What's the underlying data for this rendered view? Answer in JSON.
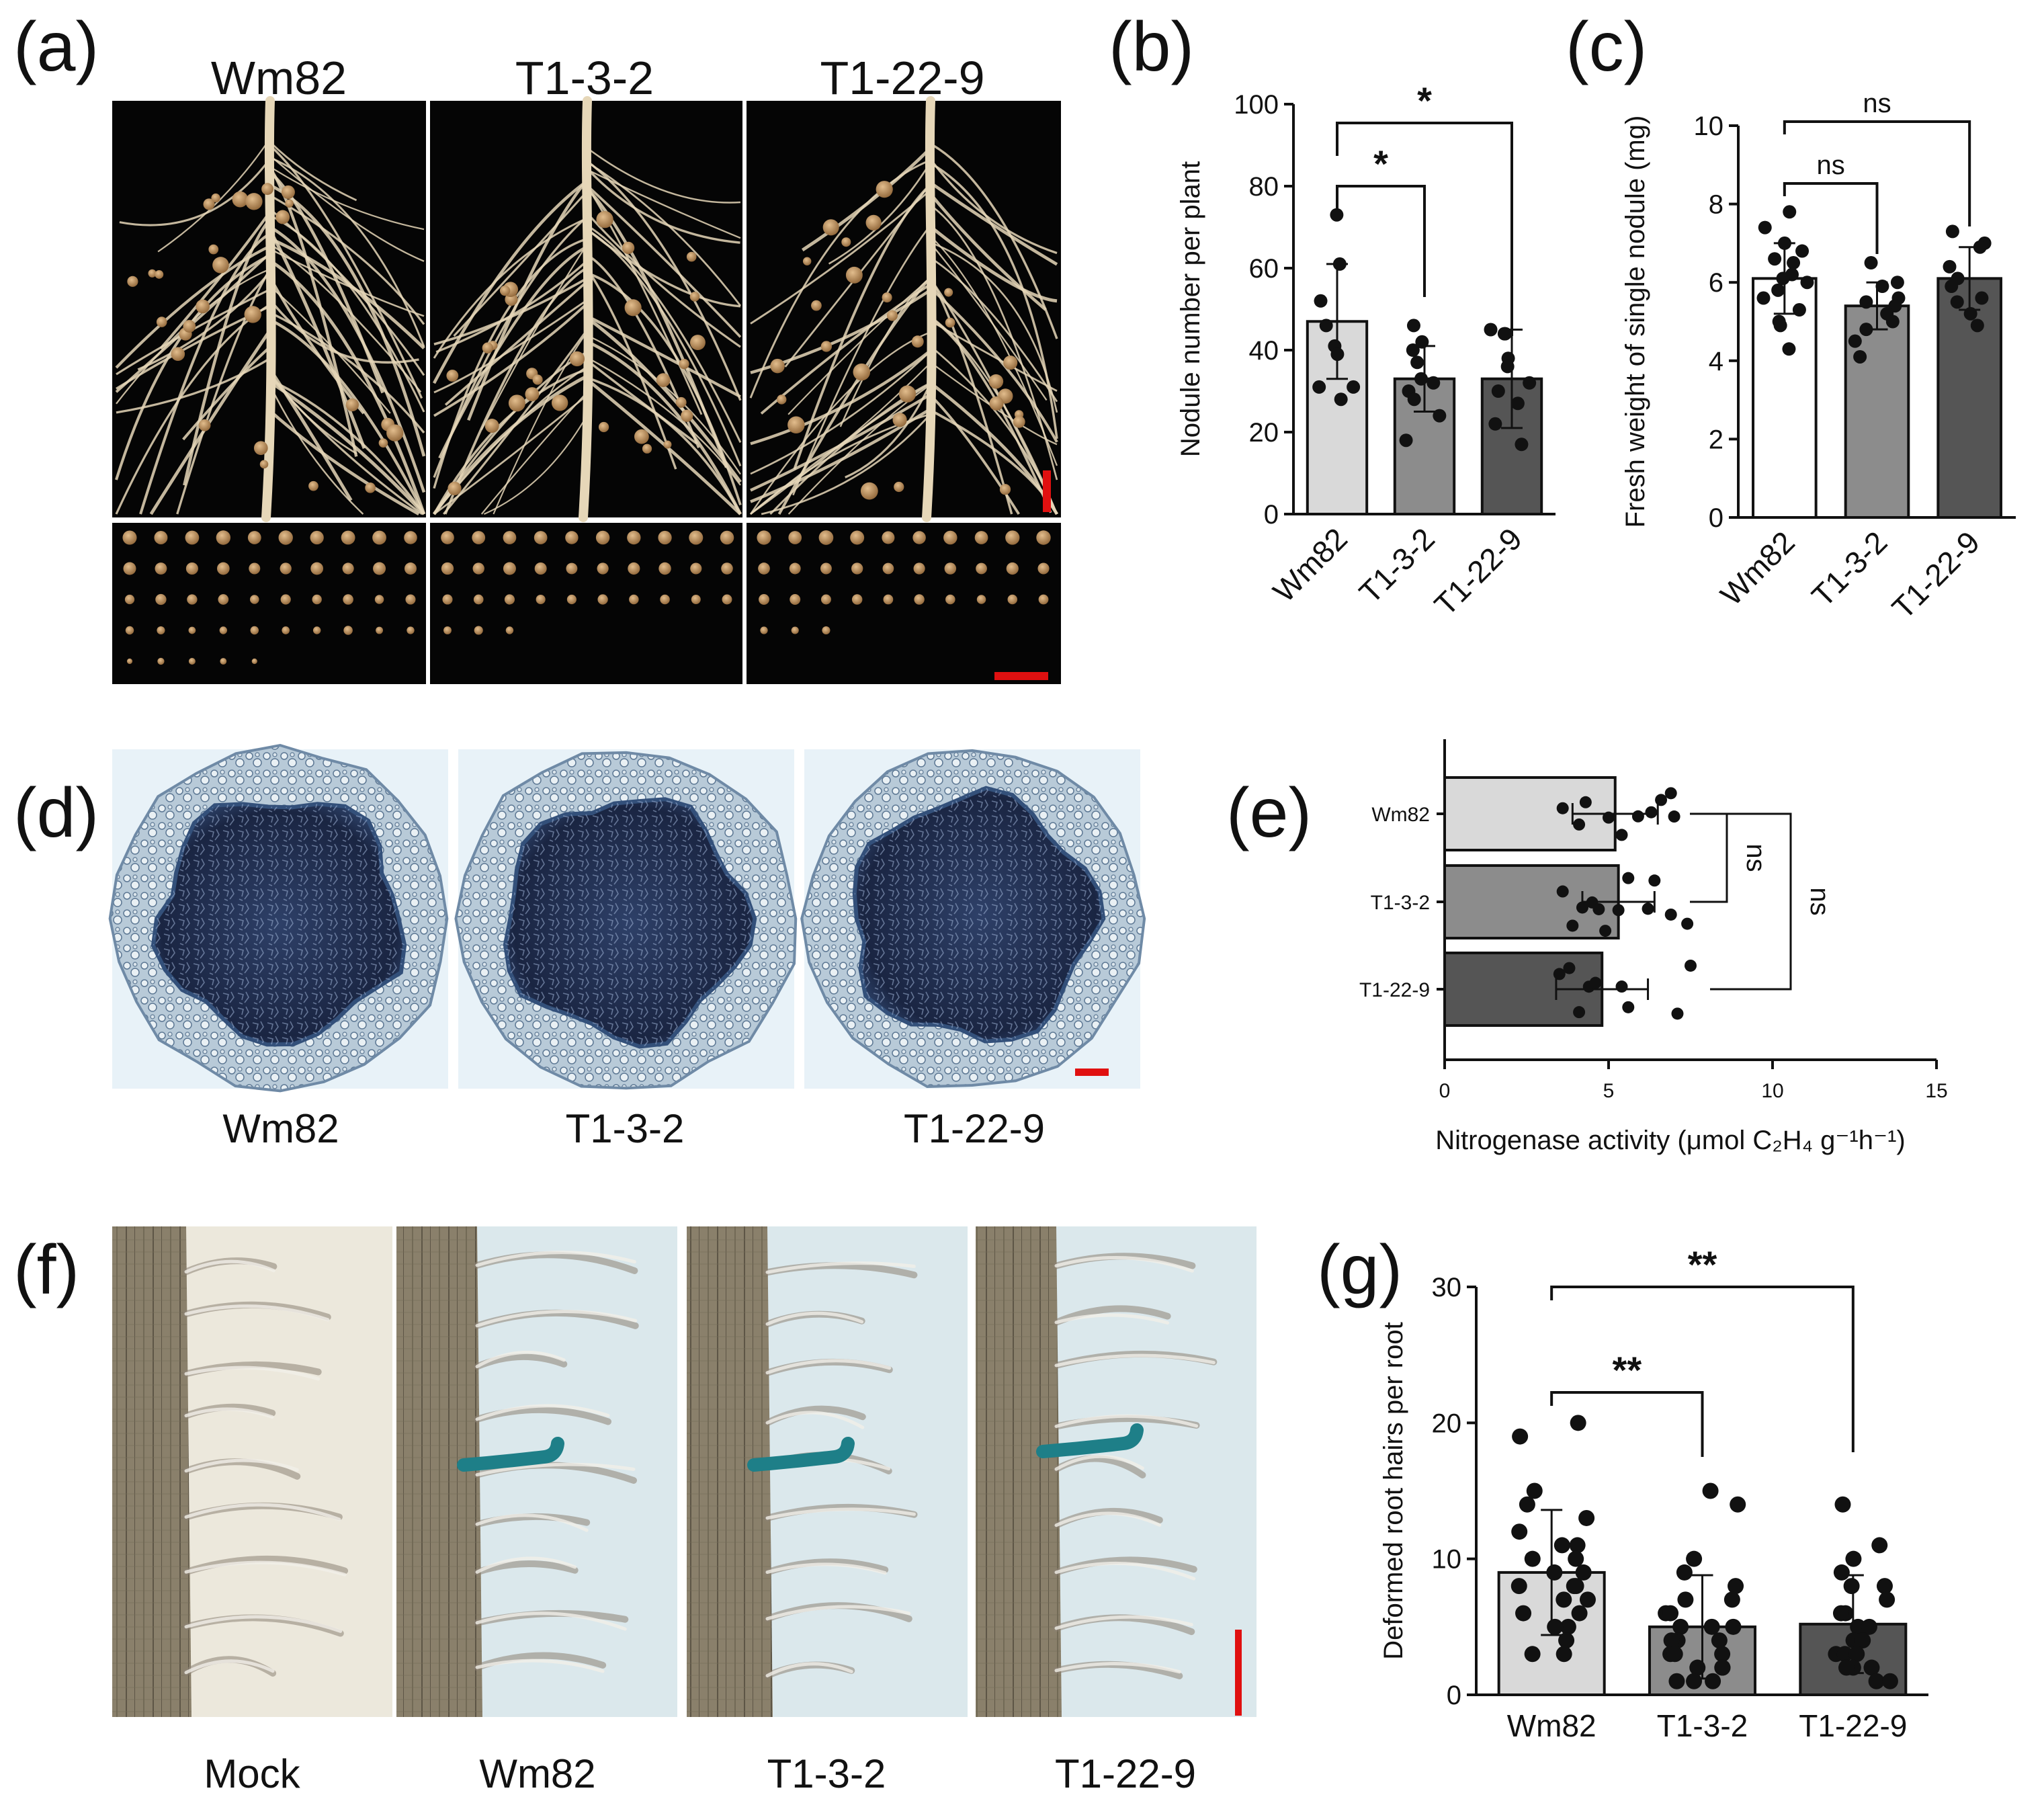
{
  "panels": {
    "a": {
      "letter": "(a)",
      "labels": [
        "Wm82",
        "T1-3-2",
        "T1-22-9"
      ]
    },
    "d": {
      "letter": "(d)",
      "labels": [
        "Wm82",
        "T1-3-2",
        "T1-22-9"
      ]
    },
    "f": {
      "letter": "(f)",
      "labels": [
        "Mock",
        "Wm82",
        "T1-3-2",
        "T1-22-9"
      ]
    }
  },
  "colors": {
    "photo_background": "#050505",
    "root": "#e6d7b8",
    "nodule": "#b98a5a",
    "section_outer": "#9fb5c8",
    "section_inner": "#1d2a48",
    "micro_background": "#dfe7e6",
    "root_tissue": "#867c68",
    "gus_stain": "#1e7f88",
    "scale_bar": "#e01010",
    "bar_light": "#d9d9d9",
    "bar_mid": "#8c8c8c",
    "bar_dark": "#555555",
    "bar_white": "#ffffff"
  },
  "chart_data": [
    {
      "id": "b",
      "letter": "(b)",
      "type": "bar",
      "categories": [
        "Wm82",
        "T1-3-2",
        "T1-22-9"
      ],
      "values": [
        47,
        33,
        33
      ],
      "errors": [
        14,
        8,
        12
      ],
      "points": [
        [
          73,
          61,
          52,
          46,
          41,
          39,
          31,
          31,
          28
        ],
        [
          46,
          42,
          40,
          37,
          33,
          32,
          30,
          28,
          24,
          18
        ],
        [
          45,
          44,
          44,
          38,
          36,
          32,
          30,
          27,
          22,
          17
        ]
      ],
      "xlabel": "",
      "ylabel": "Nodule number per plant",
      "ylim": [
        0,
        100
      ],
      "yticks": [
        0,
        20,
        40,
        60,
        80,
        100
      ],
      "significance": [
        {
          "pair": [
            "Wm82",
            "T1-3-2"
          ],
          "label": "*"
        },
        {
          "pair": [
            "Wm82",
            "T1-22-9"
          ],
          "label": "*"
        }
      ],
      "grid": false
    },
    {
      "id": "c",
      "letter": "(c)",
      "type": "bar",
      "categories": [
        "Wm82",
        "T1-3-2",
        "T1-22-9"
      ],
      "values": [
        6.1,
        5.4,
        6.1
      ],
      "errors": [
        0.9,
        0.6,
        0.8
      ],
      "points": [
        [
          7.8,
          7.4,
          7.0,
          6.8,
          6.6,
          6.5,
          6.2,
          6.1,
          6.0,
          5.8,
          5.6,
          5.3,
          5.0,
          4.9,
          4.3
        ],
        [
          6.5,
          6.0,
          5.9,
          5.6,
          5.5,
          5.4,
          5.2,
          5.0,
          4.8,
          4.5,
          4.1
        ],
        [
          7.3,
          7.0,
          6.9,
          6.4,
          6.1,
          5.9,
          5.6,
          5.5,
          5.2,
          4.9
        ]
      ],
      "xlabel": "",
      "ylabel": "Fresh weight of single nodule (mg)",
      "ylim": [
        0,
        10
      ],
      "yticks": [
        0,
        2,
        4,
        6,
        8,
        10
      ],
      "significance": [
        {
          "pair": [
            "Wm82",
            "T1-3-2"
          ],
          "label": "ns"
        },
        {
          "pair": [
            "Wm82",
            "T1-22-9"
          ],
          "label": "ns"
        }
      ],
      "grid": false
    },
    {
      "id": "e",
      "letter": "(e)",
      "type": "bar",
      "orientation": "horizontal",
      "categories": [
        "Wm82",
        "T1-3-2",
        "T1-22-9"
      ],
      "values": [
        5.2,
        5.3,
        4.8
      ],
      "errors": [
        1.3,
        1.1,
        1.4
      ],
      "points": [
        [
          3.6,
          4.1,
          4.3,
          5.0,
          5.4,
          5.9,
          6.3,
          6.6,
          6.9,
          7.0
        ],
        [
          3.6,
          3.9,
          4.2,
          4.5,
          4.7,
          4.9,
          5.3,
          5.6,
          6.2,
          6.4,
          6.9,
          7.4
        ],
        [
          3.5,
          3.8,
          4.1,
          4.4,
          4.6,
          5.4,
          5.6,
          7.1,
          7.5
        ]
      ],
      "xlabel": "Nitrogenase activity (μmol C₂H₄ g⁻¹h⁻¹)",
      "ylabel": "",
      "xlim": [
        0,
        15
      ],
      "xticks": [
        0,
        5,
        10,
        15
      ],
      "significance": [
        {
          "pair": [
            "Wm82",
            "T1-3-2"
          ],
          "label": "ns"
        },
        {
          "pair": [
            "Wm82",
            "T1-22-9"
          ],
          "label": "ns"
        }
      ],
      "grid": false
    },
    {
      "id": "g",
      "letter": "(g)",
      "type": "bar",
      "categories": [
        "Wm82",
        "T1-3-2",
        "T1-22-9"
      ],
      "values": [
        9,
        5,
        5.2
      ],
      "errors": [
        4.6,
        3.8,
        3.6
      ],
      "points": [
        [
          20,
          19,
          15,
          14,
          13,
          12,
          11,
          11,
          10,
          10,
          9,
          9,
          8,
          8,
          8,
          7,
          7,
          6,
          6,
          5,
          5,
          4,
          3,
          3
        ],
        [
          15,
          14,
          10,
          9,
          8,
          7,
          7,
          6,
          6,
          5,
          5,
          5,
          4,
          4,
          4,
          3,
          3,
          3,
          2,
          2,
          2,
          1,
          1,
          1
        ],
        [
          14,
          11,
          10,
          9,
          8,
          8,
          7,
          6,
          6,
          5,
          5,
          4,
          4,
          3,
          3,
          3,
          2,
          2,
          2,
          1,
          1
        ]
      ],
      "xlabel": "",
      "ylabel": "Deformed root hairs per root",
      "ylim": [
        0,
        30
      ],
      "yticks": [
        0,
        10,
        20,
        30
      ],
      "significance": [
        {
          "pair": [
            "Wm82",
            "T1-3-2"
          ],
          "label": "**"
        },
        {
          "pair": [
            "Wm82",
            "T1-22-9"
          ],
          "label": "**"
        }
      ],
      "grid": false
    }
  ]
}
